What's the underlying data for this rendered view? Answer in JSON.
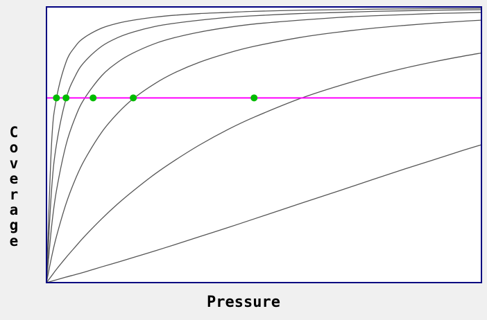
{
  "chart_data": {
    "type": "line",
    "title": "",
    "xlabel": "Pressure",
    "ylabel": "Coverage",
    "xlim": [
      0,
      10
    ],
    "ylim": [
      0,
      1
    ],
    "grid": false,
    "legend": "none",
    "x": [
      0,
      0.05,
      0.1,
      0.2,
      0.3,
      0.4,
      0.6,
      0.8,
      1.0,
      1.3,
      1.6,
      2,
      2.5,
      3,
      4,
      5,
      6,
      7,
      8,
      9,
      10
    ],
    "series": [
      {
        "values": [
          0,
          0.5,
          0.667,
          0.8,
          0.857,
          0.889,
          0.923,
          0.941,
          0.952,
          0.963,
          0.97,
          0.976,
          0.98,
          0.984,
          0.988,
          0.99,
          0.992,
          0.993,
          0.994,
          0.994,
          0.995
        ]
      },
      {
        "values": [
          0,
          0.333,
          0.5,
          0.667,
          0.75,
          0.8,
          0.857,
          0.889,
          0.909,
          0.929,
          0.941,
          0.952,
          0.962,
          0.968,
          0.976,
          0.98,
          0.984,
          0.986,
          0.988,
          0.989,
          0.99
        ]
      },
      {
        "values": [
          0,
          0.2,
          0.333,
          0.5,
          0.6,
          0.667,
          0.75,
          0.8,
          0.833,
          0.867,
          0.889,
          0.909,
          0.926,
          0.938,
          0.952,
          0.962,
          0.968,
          0.972,
          0.976,
          0.978,
          0.98
        ]
      },
      {
        "values": [
          0,
          0.091,
          0.167,
          0.286,
          0.375,
          0.444,
          0.545,
          0.615,
          0.667,
          0.722,
          0.762,
          0.8,
          0.833,
          0.857,
          0.889,
          0.909,
          0.923,
          0.933,
          0.941,
          0.947,
          0.952
        ]
      },
      {
        "values": [
          0,
          0.024,
          0.048,
          0.091,
          0.13,
          0.167,
          0.231,
          0.286,
          0.333,
          0.394,
          0.444,
          0.5,
          0.556,
          0.6,
          0.667,
          0.714,
          0.75,
          0.778,
          0.8,
          0.818,
          0.833
        ]
      },
      {
        "values": [
          0,
          0.005,
          0.01,
          0.02,
          0.029,
          0.038,
          0.057,
          0.074,
          0.091,
          0.115,
          0.138,
          0.167,
          0.2,
          0.231,
          0.286,
          0.333,
          0.375,
          0.412,
          0.444,
          0.474,
          0.5
        ]
      }
    ],
    "reference_line": {
      "y": 0.67
    },
    "intersection_points": [
      {
        "x": 0.1,
        "y": 0.67
      },
      {
        "x": 0.2,
        "y": 0.67
      },
      {
        "x": 0.5,
        "y": 0.67
      },
      {
        "x": 1.0,
        "y": 0.67
      },
      {
        "x": 3.0,
        "y": 0.67
      }
    ],
    "colors": {
      "frame": "#000080",
      "curve": "#555555",
      "reference_line": "#ff00ff",
      "point": "#00bb00",
      "plot_background": "#ffffff"
    }
  }
}
